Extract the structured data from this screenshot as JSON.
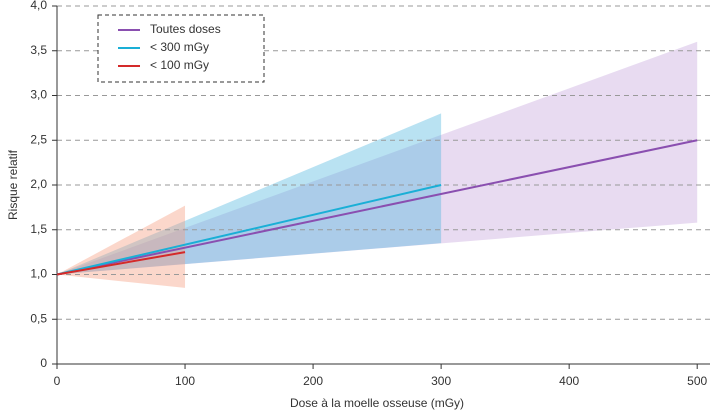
{
  "chart_data": {
    "type": "line",
    "x_label": "Dose à la moelle osseuse (mGy)",
    "y_label": "Risque relatif",
    "xlim": [
      0,
      510
    ],
    "ylim": [
      0,
      4
    ],
    "xticks": [
      0,
      100,
      200,
      300,
      400,
      500
    ],
    "yticks": [
      0,
      {
        "value": 0.5,
        "label": "0,5"
      },
      {
        "value": 1,
        "label": "1,0"
      },
      {
        "value": 1.5,
        "label": "1,5"
      },
      {
        "value": 2,
        "label": "2,0"
      },
      {
        "value": 2.5,
        "label": "2,5"
      },
      {
        "value": 3,
        "label": "3,0"
      },
      {
        "value": 3.5,
        "label": "3,5"
      },
      {
        "value": 4,
        "label": "4,0"
      }
    ],
    "grid": true,
    "legend": "upper left",
    "series": [
      {
        "name": "Toutes doses",
        "color": "#8a4fb0",
        "band_color": "#c6a6dc",
        "x": [
          0,
          500
        ],
        "values": [
          1,
          2.5
        ],
        "lower": [
          1,
          1.58
        ],
        "upper": [
          1,
          3.6
        ]
      },
      {
        "name": "< 300 mGy",
        "color": "#1aafd6",
        "band_color": "#4fb7df",
        "x": [
          0,
          300
        ],
        "values": [
          1,
          2.0
        ],
        "lower": [
          1,
          1.35
        ],
        "upper": [
          1,
          2.8
        ]
      },
      {
        "name": "< 100 mGy",
        "color": "#d42a2a",
        "band_color": "#f59a7e",
        "x": [
          0,
          100
        ],
        "values": [
          1,
          1.25
        ],
        "lower": [
          1,
          0.85
        ],
        "upper": [
          1,
          1.77
        ]
      }
    ]
  }
}
